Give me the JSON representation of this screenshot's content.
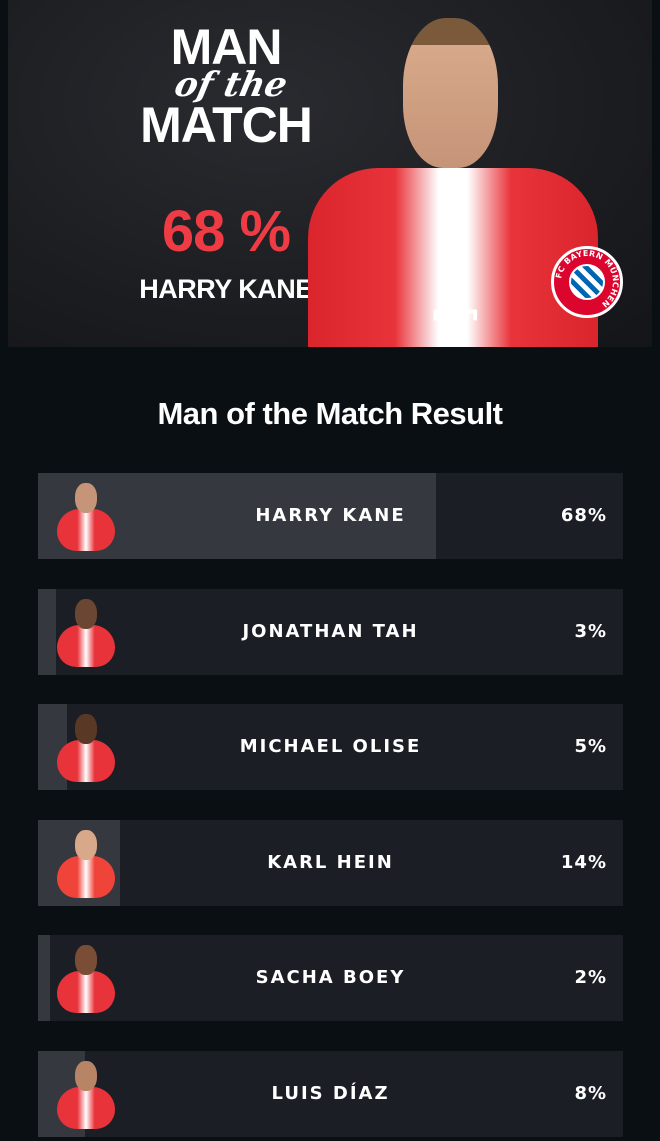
{
  "hero": {
    "title_line1": "MAN",
    "title_line2": "of the",
    "title_line3": "MATCH",
    "winner_percent": "68 %",
    "winner_name": "HARRY KANE",
    "club_badge": "FC BAYERN MÜNCHEN"
  },
  "results_title": "Man of the Match Result",
  "colors": {
    "accent": "#ef3b44",
    "row_bg": "#1b1e25",
    "row_fill": "#35383e",
    "page_bg": "#0a0f14"
  },
  "players": [
    {
      "name": "HARRY KANE",
      "percent_label": "68%",
      "percent": 68,
      "skin": "#c69478",
      "kit": "#e8333a"
    },
    {
      "name": "JONATHAN TAH",
      "percent_label": "3%",
      "percent": 3,
      "skin": "#6b4632",
      "kit": "#e8333a"
    },
    {
      "name": "MICHAEL OLISE",
      "percent_label": "5%",
      "percent": 5,
      "skin": "#5a3826",
      "kit": "#e8333a"
    },
    {
      "name": "KARL HEIN",
      "percent_label": "14%",
      "percent": 14,
      "skin": "#d7a88a",
      "kit": "#f0433a"
    },
    {
      "name": "SACHA BOEY",
      "percent_label": "2%",
      "percent": 2,
      "skin": "#7a4e36",
      "kit": "#e8333a"
    },
    {
      "name": "LUIS DÍAZ",
      "percent_label": "8%",
      "percent": 8,
      "skin": "#b88466",
      "kit": "#e8333a"
    }
  ]
}
